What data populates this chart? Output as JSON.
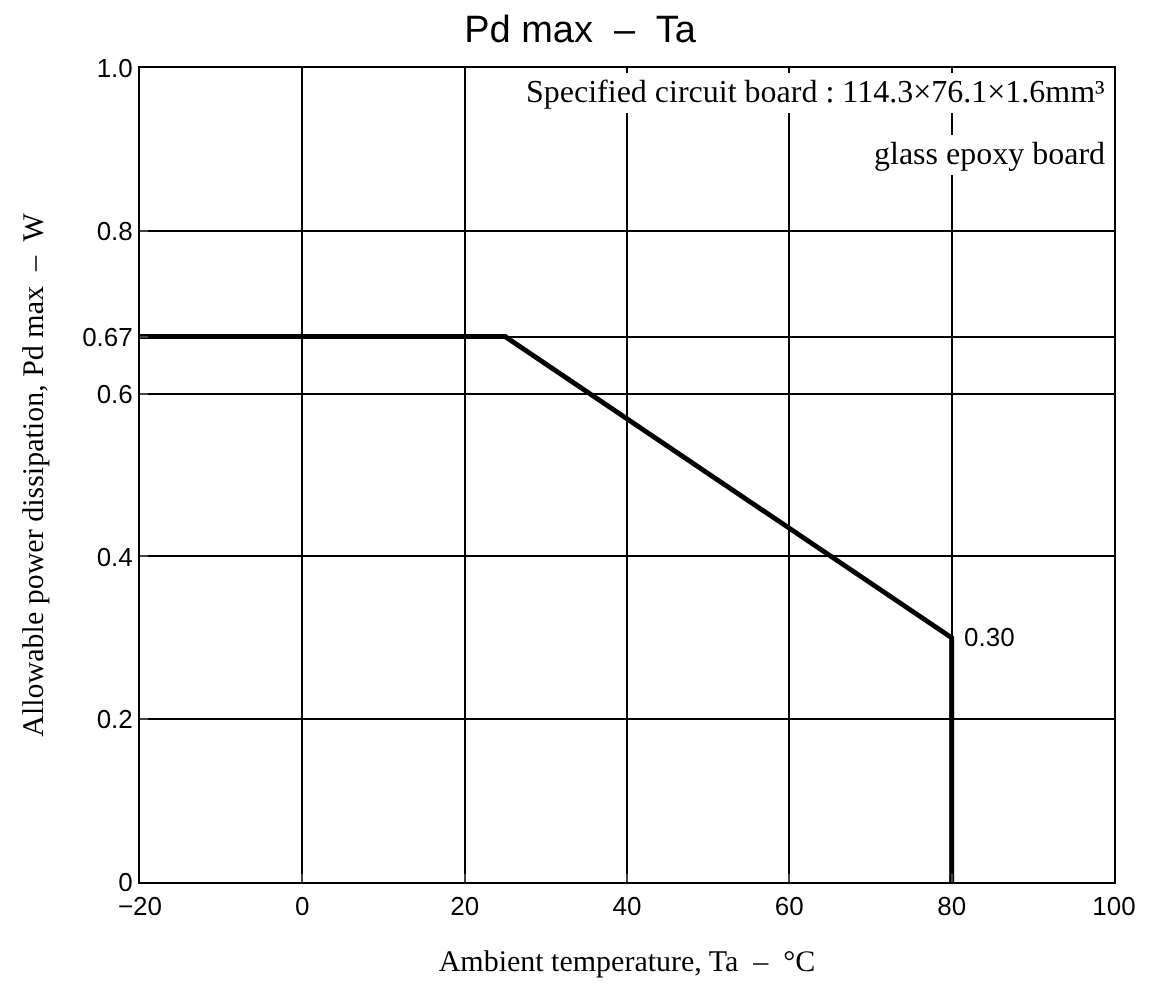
{
  "chart_data": {
    "type": "line",
    "title": "Pd max  –  Ta",
    "xlabel": "Ambient temperature, Ta  –  °C",
    "ylabel": "Allowable power dissipation, Pd max  –  W",
    "series": [
      {
        "color": "#000000",
        "x": [
          -20,
          25,
          80,
          80
        ],
        "values": [
          0.67,
          0.67,
          0.3,
          0
        ]
      }
    ],
    "xlim": [
      -20,
      100
    ],
    "xticks": [
      {
        "value": -20,
        "label": "−20"
      },
      0,
      20,
      40,
      60,
      80,
      100
    ],
    "ylim": [
      0,
      1.0
    ],
    "yticks": [
      0,
      0.2,
      0.4,
      0.6,
      0.67,
      0.8,
      {
        "value": 1.0,
        "label": "1.0"
      }
    ],
    "grid": true,
    "marker": "none",
    "line_style": "solid",
    "annotations": [
      {
        "text": "0.30",
        "x": 80,
        "y": 0.3
      },
      "Specified circuit board : 114.3×76.1×1.6mm³",
      "glass epoxy board"
    ]
  }
}
